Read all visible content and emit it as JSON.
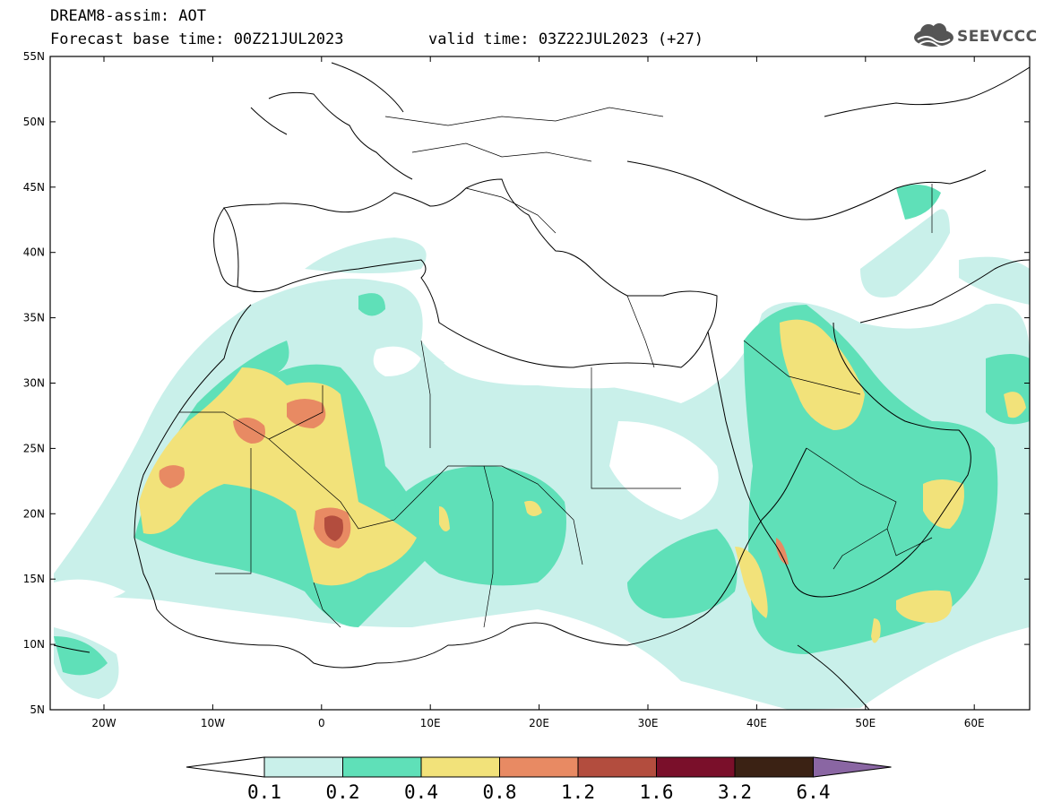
{
  "header": {
    "model_title": "DREAM8-assim: AOT",
    "base_time": "Forecast base time: 00Z21JUL2023",
    "valid_time": "valid time: 03Z22JUL2023 (+27)"
  },
  "logo": {
    "text": "SEEVCCC",
    "icon": "cloud-icon"
  },
  "map": {
    "region": "North Africa, Mediterranean and Middle East",
    "lat_labels": [
      "55N",
      "50N",
      "45N",
      "40N",
      "35N",
      "30N",
      "25N",
      "20N",
      "15N",
      "10N",
      "5N"
    ],
    "lon_labels": [
      "20W",
      "10W",
      "0",
      "10E",
      "20E",
      "30E",
      "40E",
      "50E",
      "60E"
    ]
  },
  "colorbar": {
    "labels": [
      "0.1",
      "0.2",
      "0.4",
      "0.8",
      "1.2",
      "1.6",
      "3.2",
      "6.4"
    ],
    "colors": [
      "#ffffff",
      "#c9f0ea",
      "#5fe0b8",
      "#f2e27a",
      "#e88a63",
      "#b34d3e",
      "#7a0f2a",
      "#3b2214",
      "#8a66a3"
    ]
  }
}
